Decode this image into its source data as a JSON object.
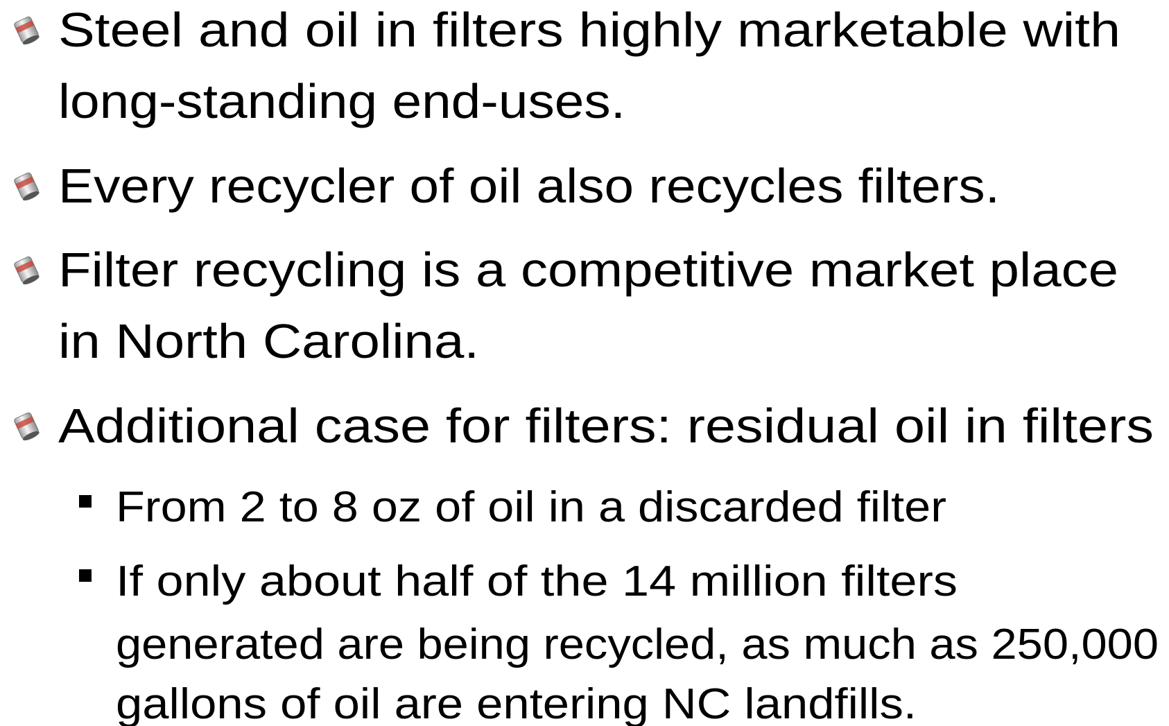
{
  "bullets": [
    {
      "lines": [
        "Steel and oil in filters highly marketable with",
        "long-standing end-uses."
      ]
    },
    {
      "lines": [
        "Every recycler of oil also recycles filters."
      ]
    },
    {
      "lines": [
        "Filter recycling is a competitive market place",
        "in North Carolina."
      ]
    },
    {
      "lines": [
        "Additional case for filters: residual oil in filters"
      ],
      "sub": [
        {
          "lines": [
            "From 2 to 8 oz of oil in a discarded filter"
          ]
        },
        {
          "lines": [
            "If only about half of the 14 million filters",
            "generated are being recycled, as much as 250,000",
            "gallons of oil  are entering NC landfills."
          ]
        }
      ]
    }
  ]
}
